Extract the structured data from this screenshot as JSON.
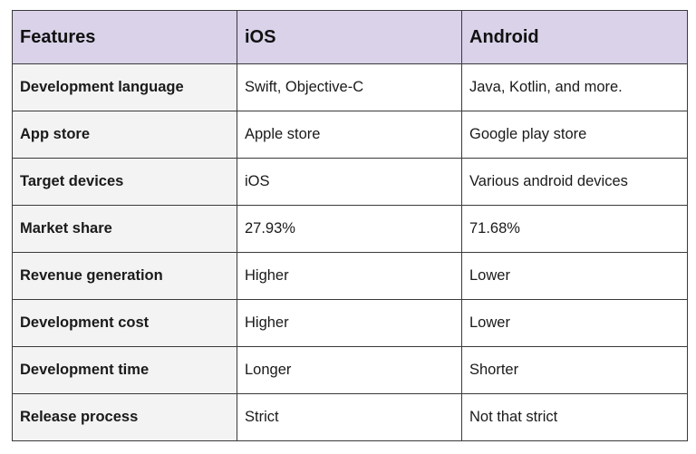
{
  "table": {
    "headers": [
      "Features",
      "iOS",
      "Android"
    ],
    "rows": [
      [
        "Development language",
        "Swift, Objective-C",
        "Java, Kotlin, and more."
      ],
      [
        "App store",
        "Apple store",
        "Google play store"
      ],
      [
        "Target devices",
        "iOS",
        "Various android devices"
      ],
      [
        "Market share",
        "27.93%",
        "71.68%"
      ],
      [
        "Revenue generation",
        "Higher",
        "Lower"
      ],
      [
        "Development cost",
        "Higher",
        "Lower"
      ],
      [
        "Development time",
        "Longer",
        "Shorter"
      ],
      [
        "Release process",
        "Strict",
        "Not that strict"
      ]
    ]
  },
  "colors": {
    "header_background": "#d9d2e9",
    "feature_column_background": "#f3f3f3",
    "border": "#3a3a3a"
  }
}
